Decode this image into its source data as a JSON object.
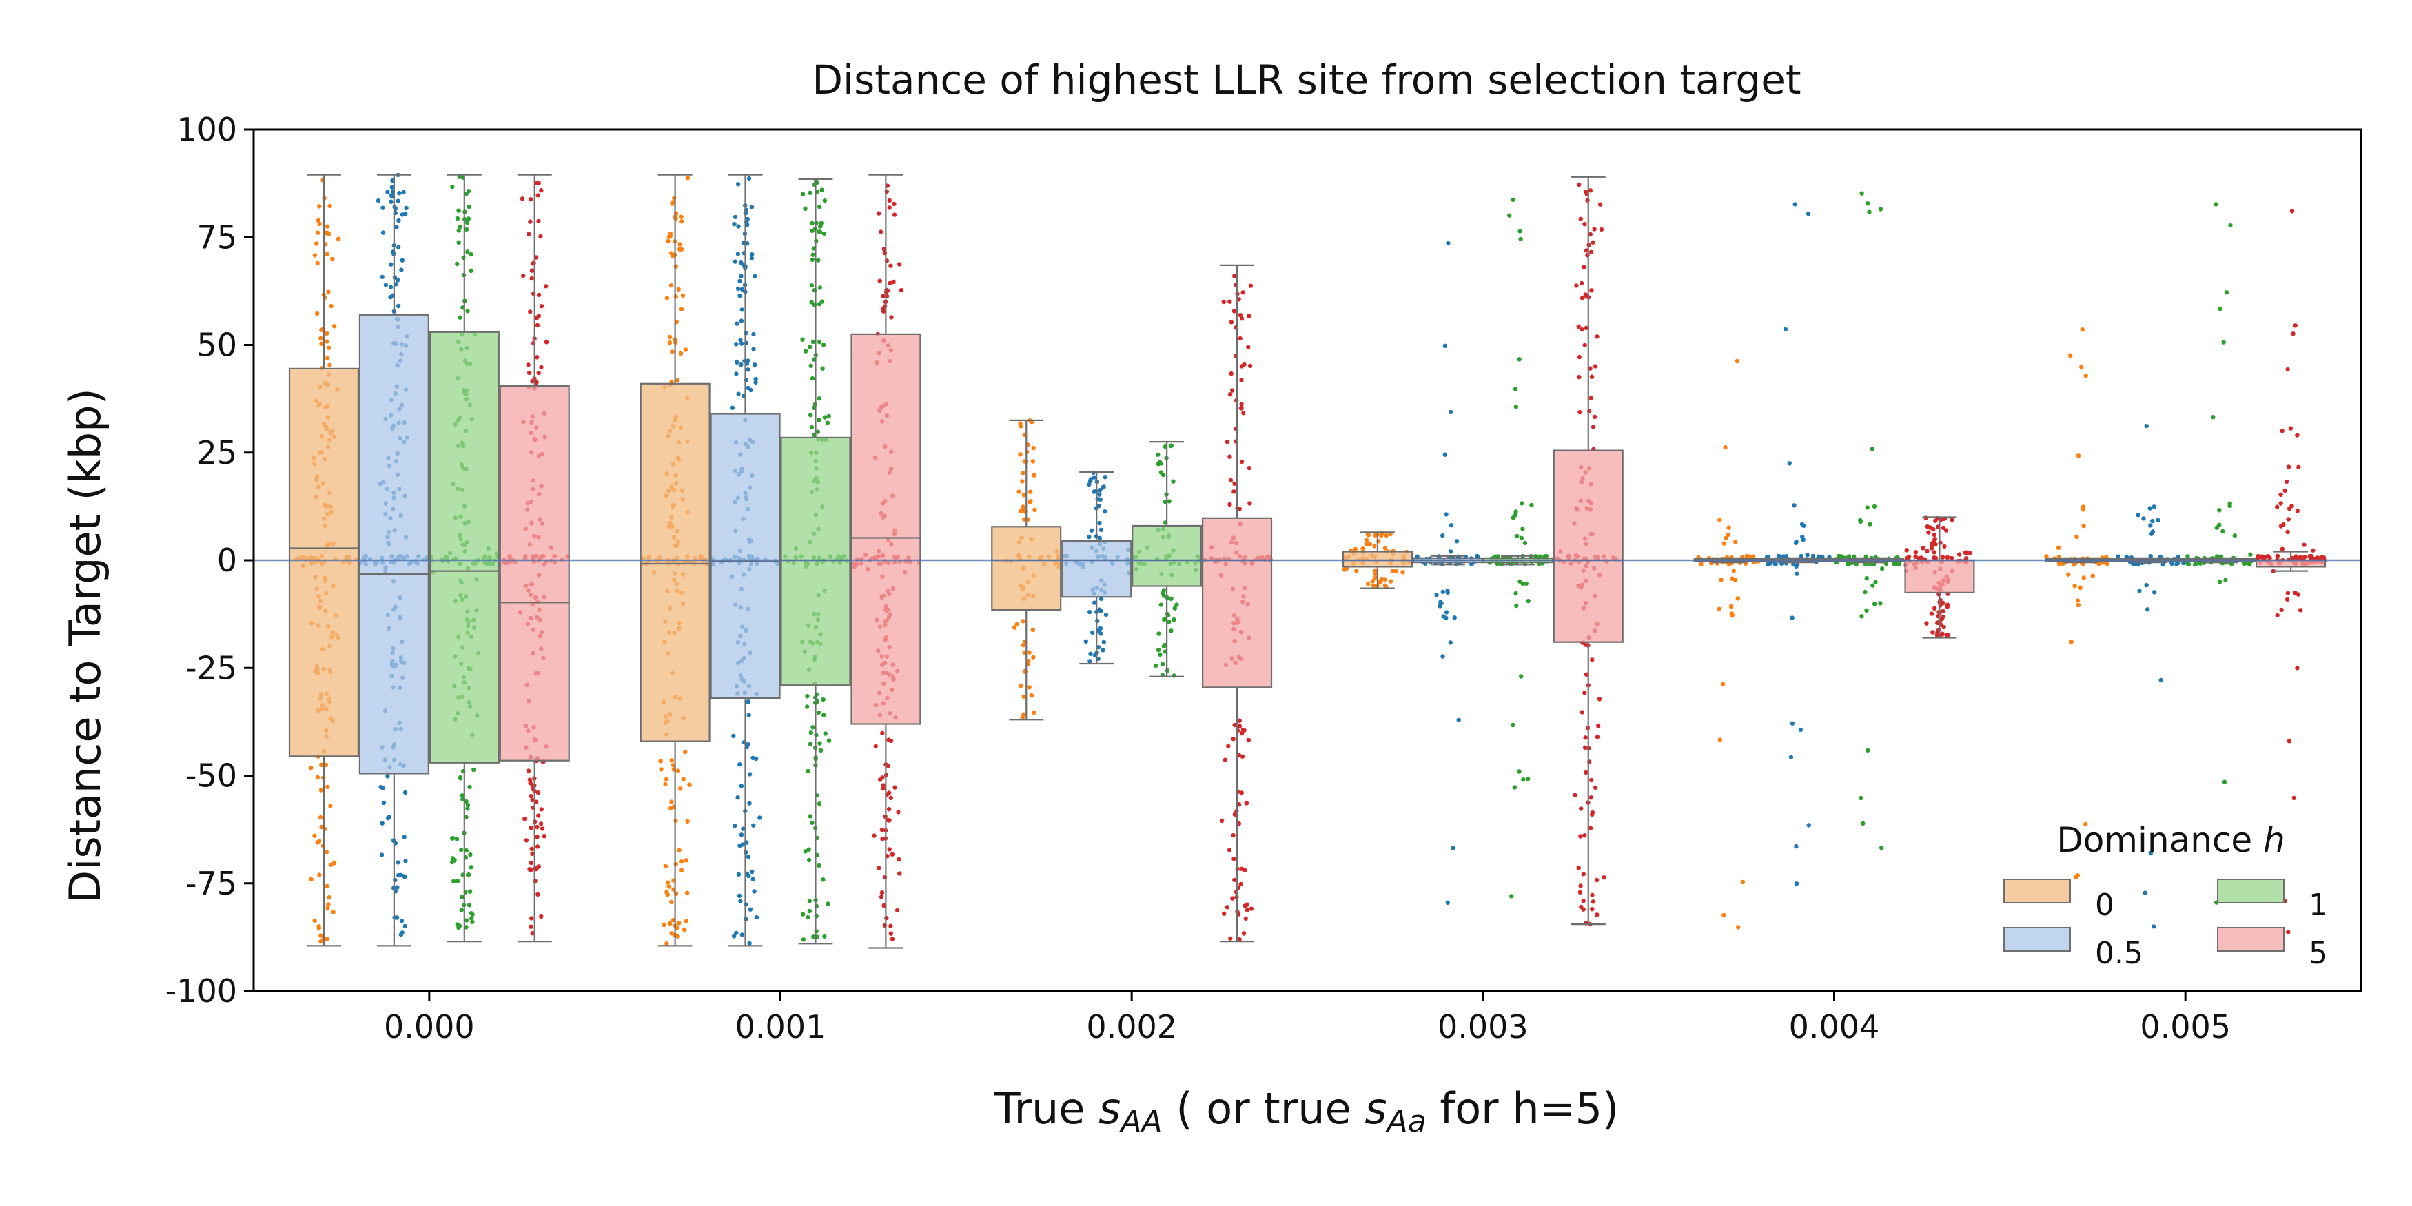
{
  "chart_data": {
    "type": "box",
    "title": "Distance of highest LLR site from selection target",
    "ylabel": "Distance to Target (kbp)",
    "xlabel": {
      "prefix": "True ",
      "s1": "s",
      "sub1": "AA",
      "mid": " ( or true ",
      "s2": "s",
      "sub2": "Aa",
      "suffix": " for h=5)"
    },
    "categories": [
      "0.000",
      "0.001",
      "0.002",
      "0.003",
      "0.004",
      "0.005"
    ],
    "ylim": [
      -100,
      100
    ],
    "yticks": [
      100,
      75,
      50,
      25,
      0,
      -25,
      -50,
      -75,
      -100
    ],
    "ytick_labels": [
      "100",
      "75",
      "50",
      "25",
      "0",
      "-25",
      "-50",
      "-75",
      "-100"
    ],
    "grid": false,
    "legend": {
      "title_text": "Dominance ",
      "title_var": "h",
      "placement": "lower-right",
      "entries": [
        "0",
        "0.5",
        "1",
        "5"
      ]
    },
    "series": [
      {
        "name": "0",
        "box_color": "#f2b980",
        "point_color": "#ff7f0e",
        "boxes": [
          {
            "q1": -45.5,
            "median": 2.8,
            "q3": 44.5,
            "whislo": -89.5,
            "whishi": 89.5
          },
          {
            "q1": -42.0,
            "median": -0.8,
            "q3": 41.0,
            "whislo": -89.5,
            "whishi": 89.5
          },
          {
            "q1": -11.5,
            "median": 0.0,
            "q3": 7.8,
            "whislo": -37.0,
            "whishi": 32.5
          },
          {
            "q1": -1.5,
            "median": 0.0,
            "q3": 2.0,
            "whislo": -6.5,
            "whishi": 6.5
          },
          {
            "q1": -0.3,
            "median": 0.0,
            "q3": 0.3,
            "whislo": -0.5,
            "whishi": 0.5
          },
          {
            "q1": -0.3,
            "median": 0.0,
            "q3": 0.3,
            "whislo": -0.5,
            "whishi": 0.5
          }
        ],
        "swarm_density": [
          180,
          170,
          75,
          70,
          60,
          55
        ]
      },
      {
        "name": "0.5",
        "box_color": "#aec7e8",
        "point_color": "#1f77b4",
        "boxes": [
          {
            "q1": -49.5,
            "median": -3.2,
            "q3": 57.0,
            "whislo": -89.5,
            "whishi": 89.5
          },
          {
            "q1": -32.0,
            "median": -0.3,
            "q3": 34.0,
            "whislo": -89.5,
            "whishi": 89.5
          },
          {
            "q1": -8.5,
            "median": 0.0,
            "q3": 4.5,
            "whislo": -24.0,
            "whishi": 20.5
          },
          {
            "q1": -0.5,
            "median": 0.0,
            "q3": 0.5,
            "whislo": -1.0,
            "whishi": 1.0
          },
          {
            "q1": -0.3,
            "median": 0.0,
            "q3": 0.3,
            "whislo": -0.5,
            "whishi": 0.5
          },
          {
            "q1": -0.3,
            "median": 0.0,
            "q3": 0.3,
            "whislo": -0.5,
            "whishi": 0.5
          }
        ],
        "swarm_density": [
          185,
          175,
          80,
          65,
          55,
          45
        ]
      },
      {
        "name": "1",
        "box_color": "#98d68c",
        "point_color": "#2ca02c",
        "boxes": [
          {
            "q1": -47.0,
            "median": -2.5,
            "q3": 53.0,
            "whislo": -88.5,
            "whishi": 89.5
          },
          {
            "q1": -29.0,
            "median": 0.0,
            "q3": 28.5,
            "whislo": -89.0,
            "whishi": 88.5
          },
          {
            "q1": -6.0,
            "median": 0.0,
            "q3": 8.0,
            "whislo": -27.0,
            "whishi": 27.5
          },
          {
            "q1": -0.5,
            "median": 0.0,
            "q3": 0.5,
            "whislo": -1.0,
            "whishi": 1.0
          },
          {
            "q1": -0.3,
            "median": 0.0,
            "q3": 0.3,
            "whislo": -0.5,
            "whishi": 0.5
          },
          {
            "q1": -0.3,
            "median": 0.0,
            "q3": 0.3,
            "whislo": -0.5,
            "whishi": 0.5
          }
        ],
        "swarm_density": [
          180,
          165,
          70,
          75,
          60,
          50
        ]
      },
      {
        "name": "5",
        "box_color": "#f4a5a5",
        "point_color": "#d62728",
        "boxes": [
          {
            "q1": -46.5,
            "median": -9.8,
            "q3": 40.5,
            "whislo": -88.5,
            "whishi": 89.5
          },
          {
            "q1": -38.0,
            "median": 5.2,
            "q3": 52.5,
            "whislo": -90.0,
            "whishi": 89.5
          },
          {
            "q1": -29.5,
            "median": 0.0,
            "q3": 9.8,
            "whislo": -88.5,
            "whishi": 68.5
          },
          {
            "q1": -19.0,
            "median": 0.0,
            "q3": 25.5,
            "whislo": -84.5,
            "whishi": 89.0
          },
          {
            "q1": -7.5,
            "median": 0.0,
            "q3": 0.0,
            "whislo": -18.0,
            "whishi": 10.0
          },
          {
            "q1": -1.5,
            "median": 0.0,
            "q3": 0.0,
            "whislo": -2.5,
            "whishi": 2.0
          }
        ],
        "swarm_density": [
          170,
          170,
          140,
          140,
          105,
          95
        ]
      }
    ]
  }
}
